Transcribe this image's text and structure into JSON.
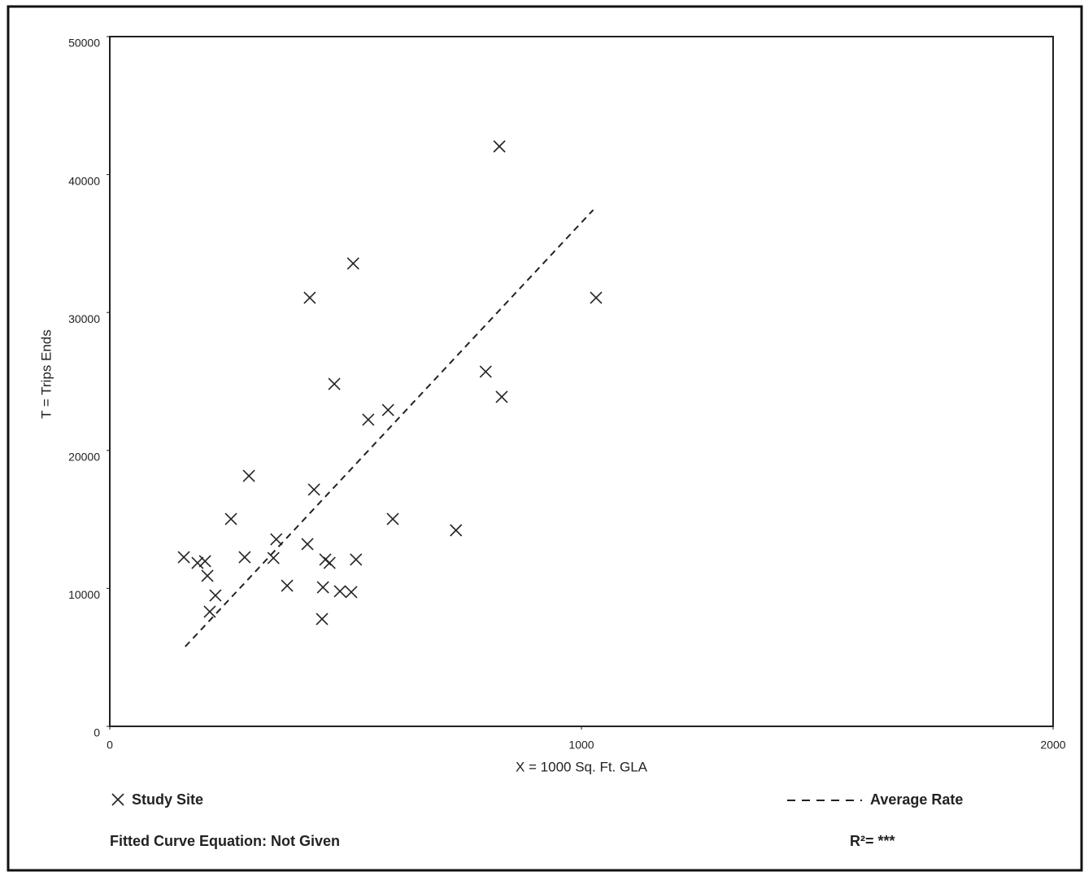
{
  "chart_data": {
    "type": "scatter",
    "x_label": "X = 1000 Sq. Ft. GLA",
    "y_label": "T = Trips Ends",
    "xlim": [
      0,
      2000
    ],
    "ylim": [
      0,
      50000
    ],
    "xticks": [
      0,
      1000,
      2000
    ],
    "yticks": [
      0,
      10000,
      20000,
      30000,
      40000,
      50000
    ],
    "grid": false,
    "series": [
      {
        "name": "Study Site",
        "type": "scatter",
        "color": "#222222",
        "x": [
          157,
          186,
          202,
          207,
          224,
          212,
          257,
          295,
          286,
          347,
          353,
          376,
          419,
          424,
          433,
          450,
          452,
          457,
          466,
          476,
          488,
          512,
          516,
          522,
          548,
          590,
          600,
          734,
          797,
          826,
          831,
          1031
        ],
        "values": [
          12260,
          11850,
          11970,
          10910,
          9490,
          8310,
          15030,
          18160,
          12260,
          12200,
          13560,
          10200,
          13210,
          31070,
          17160,
          7780,
          10080,
          12090,
          11850,
          24820,
          9790,
          9730,
          33550,
          12090,
          22230,
          22930,
          15030,
          14210,
          25710,
          42040,
          23880,
          31070
        ]
      },
      {
        "name": "Average Rate",
        "type": "line",
        "line_style": "dashed",
        "color": "#222222",
        "x": [
          160,
          1025
        ],
        "values": [
          5780,
          37440
        ]
      }
    ],
    "annotations": [
      "Fitted Curve Equation: Not Given",
      "R²= ***"
    ]
  }
}
